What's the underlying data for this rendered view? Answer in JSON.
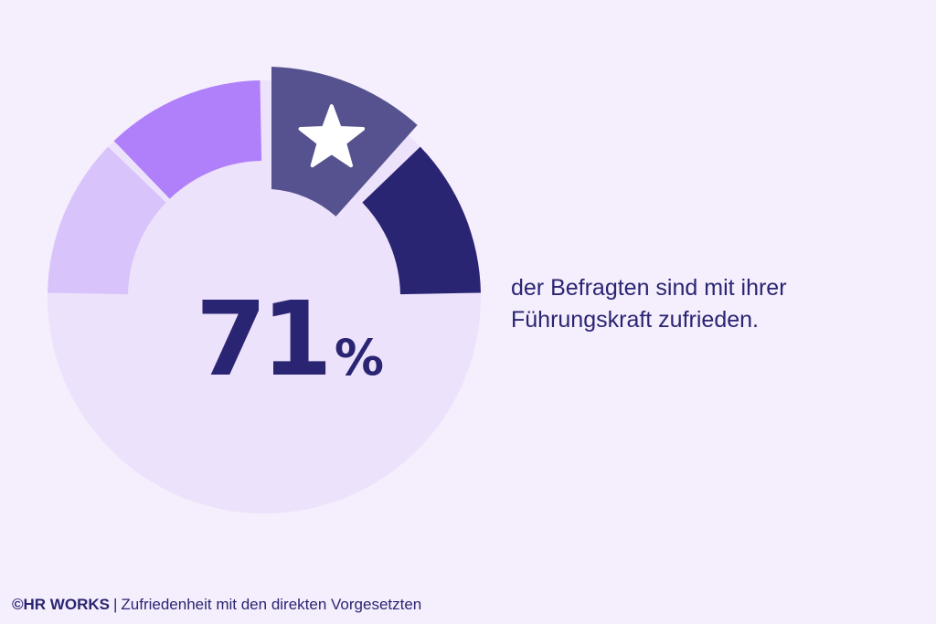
{
  "chart_data": {
    "type": "gauge",
    "value": 71,
    "unit": "%",
    "segments": [
      {
        "color": "#d8c3fb"
      },
      {
        "color": "#b07ffa"
      },
      {
        "color": "#55528f",
        "highlighted": true,
        "icon": "star-icon"
      },
      {
        "color": "#2a2573"
      }
    ],
    "fill_color": "#ede2fb"
  },
  "headline": {
    "value": "71",
    "unit": "%"
  },
  "caption": {
    "line1": "der Befragten sind mit ihrer",
    "line2": "Führungskraft zufrieden."
  },
  "footer": {
    "brand": "©HR WORKS",
    "separator": "|",
    "subtitle": "Zufriedenheit mit den direkten Vorgesetzten"
  },
  "colors": {
    "background": "#f5eefc",
    "text": "#2a2573"
  }
}
